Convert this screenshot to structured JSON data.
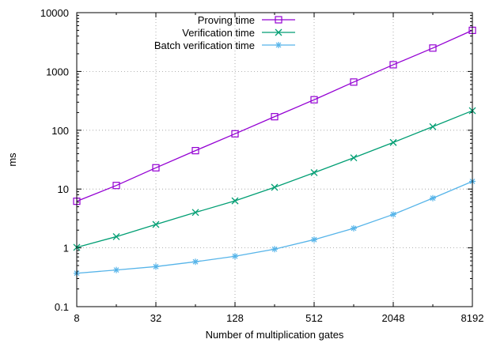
{
  "chart_data": {
    "type": "line",
    "title": "",
    "xlabel": "Number of multiplication gates",
    "ylabel": "ms",
    "x_scale": "log2",
    "y_scale": "log10",
    "xlim": [
      8,
      8192
    ],
    "ylim": [
      0.1,
      10000
    ],
    "x_ticks": [
      8,
      32,
      128,
      512,
      2048,
      8192
    ],
    "x_tick_labels": [
      "8",
      "32",
      "128",
      "512",
      "2048",
      "8192"
    ],
    "y_ticks": [
      0.1,
      1,
      10,
      100,
      1000,
      10000
    ],
    "y_tick_labels": [
      "0.1",
      "1",
      "10",
      "100",
      "1000",
      "10000"
    ],
    "grid": true,
    "legend_position": "top-right",
    "x": [
      8,
      16,
      32,
      64,
      128,
      256,
      512,
      1024,
      2048,
      4096,
      8192
    ],
    "series": [
      {
        "name": "Proving time",
        "color": "#9400d3",
        "marker": "square",
        "values": [
          6.2,
          11.5,
          23,
          45,
          87,
          170,
          330,
          660,
          1300,
          2500,
          5000
        ]
      },
      {
        "name": "Verification time",
        "color": "#009e73",
        "marker": "x",
        "values": [
          1.02,
          1.55,
          2.5,
          4.0,
          6.3,
          10.7,
          19,
          34,
          62,
          115,
          215
        ]
      },
      {
        "name": "Batch verification time",
        "color": "#56b4e9",
        "marker": "star",
        "values": [
          0.37,
          0.42,
          0.48,
          0.58,
          0.72,
          0.95,
          1.38,
          2.15,
          3.7,
          7.0,
          13.5
        ]
      }
    ]
  }
}
